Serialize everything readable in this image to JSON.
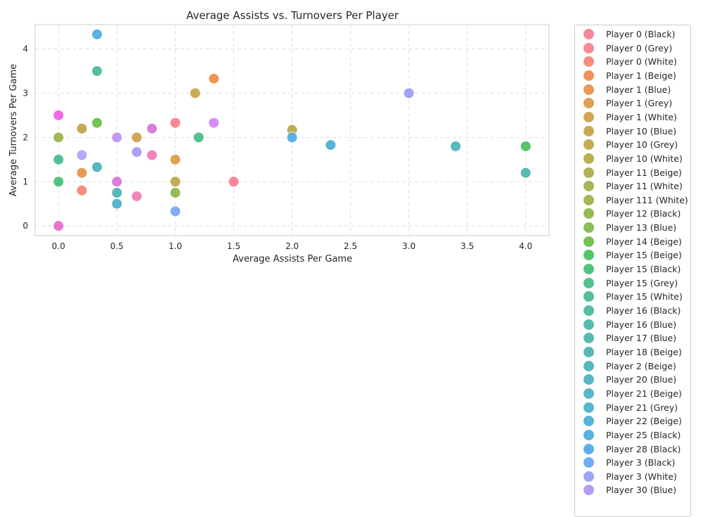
{
  "chart_data": {
    "type": "scatter",
    "title": "Average Assists vs. Turnovers Per Player",
    "xlabel": "Average Assists Per Game",
    "ylabel": "Average Turnovers Per Game",
    "xlim": [
      -0.2,
      4.2
    ],
    "ylim": [
      -0.22,
      4.55
    ],
    "xticks": [
      "0.0",
      "0.5",
      "1.0",
      "1.5",
      "2.0",
      "2.5",
      "3.0",
      "3.5",
      "4.0"
    ],
    "yticks": [
      "0",
      "1",
      "2",
      "3",
      "4"
    ],
    "grid": true,
    "grid_style": "dashed",
    "legend_position": "outside-right",
    "legend": [
      {
        "label": "Player 0 (Black)",
        "color": "#f77189"
      },
      {
        "label": "Player 0 (Grey)",
        "color": "#f7737f"
      },
      {
        "label": "Player 0 (White)",
        "color": "#f67a66"
      },
      {
        "label": "Player 1 (Beige)",
        "color": "#f07f3b"
      },
      {
        "label": "Player 1 (Blue)",
        "color": "#e48836"
      },
      {
        "label": "Player 1 (Grey)",
        "color": "#d99036"
      },
      {
        "label": "Player 1 (White)",
        "color": "#cd9636"
      },
      {
        "label": "Player 10 (Blue)",
        "color": "#c29a36"
      },
      {
        "label": "Player 10 (Grey)",
        "color": "#b89d36"
      },
      {
        "label": "Player 10 (White)",
        "color": "#afa136"
      },
      {
        "label": "Player 11 (Beige)",
        "color": "#a5a436"
      },
      {
        "label": "Player 11 (White)",
        "color": "#9ba836"
      },
      {
        "label": "Player 111 (White)",
        "color": "#90ab36"
      },
      {
        "label": "Player 12 (Black)",
        "color": "#84af37"
      },
      {
        "label": "Player 13 (Blue)",
        "color": "#73b337"
      },
      {
        "label": "Player 14 (Beige)",
        "color": "#5cb837"
      },
      {
        "label": "Player 15 (Beige)",
        "color": "#36bb4e"
      },
      {
        "label": "Player 15 (Black)",
        "color": "#36b86a"
      },
      {
        "label": "Player 15 (Grey)",
        "color": "#37b57b"
      },
      {
        "label": "Player 15 (White)",
        "color": "#37b388"
      },
      {
        "label": "Player 16 (Black)",
        "color": "#37b193"
      },
      {
        "label": "Player 16 (Blue)",
        "color": "#38af9c"
      },
      {
        "label": "Player 17 (Blue)",
        "color": "#38aea4"
      },
      {
        "label": "Player 18 (Beige)",
        "color": "#39adab"
      },
      {
        "label": "Player 2 (Beige)",
        "color": "#39acb2"
      },
      {
        "label": "Player 20 (Blue)",
        "color": "#39abb8"
      },
      {
        "label": "Player 21 (Beige)",
        "color": "#3aaabf"
      },
      {
        "label": "Player 21 (Grey)",
        "color": "#3aa9c6"
      },
      {
        "label": "Player 22 (Beige)",
        "color": "#3ba7ce"
      },
      {
        "label": "Player 25 (Black)",
        "color": "#3da5d8"
      },
      {
        "label": "Player 28 (Black)",
        "color": "#40a2e5"
      },
      {
        "label": "Player 3 (Black)",
        "color": "#5b9cf3"
      },
      {
        "label": "Player 3 (White)",
        "color": "#8b95f4"
      },
      {
        "label": "Player 30 (Blue)",
        "color": "#a48df4"
      }
    ],
    "points": [
      {
        "x": 0.33,
        "y": 4.33,
        "color": "#3da5d8"
      },
      {
        "x": 0.33,
        "y": 3.5,
        "color": "#37b193"
      },
      {
        "x": 1.33,
        "y": 3.33,
        "color": "#f07f3b"
      },
      {
        "x": 1.17,
        "y": 3.0,
        "color": "#c29a36"
      },
      {
        "x": 3.0,
        "y": 3.0,
        "color": "#8b95f4"
      },
      {
        "x": 0.0,
        "y": 2.5,
        "color": "#f04ee8"
      },
      {
        "x": 1.0,
        "y": 2.33,
        "color": "#f7737f"
      },
      {
        "x": 1.33,
        "y": 2.33,
        "color": "#d178f4"
      },
      {
        "x": 0.33,
        "y": 2.33,
        "color": "#5cb837"
      },
      {
        "x": 0.2,
        "y": 2.2,
        "color": "#b89d36"
      },
      {
        "x": 0.8,
        "y": 2.2,
        "color": "#d467d6"
      },
      {
        "x": 2.0,
        "y": 2.17,
        "color": "#afa136"
      },
      {
        "x": 0.0,
        "y": 2.0,
        "color": "#90ab36"
      },
      {
        "x": 0.5,
        "y": 2.0,
        "color": "#b68cf4"
      },
      {
        "x": 0.67,
        "y": 2.0,
        "color": "#cd9636"
      },
      {
        "x": 1.2,
        "y": 2.0,
        "color": "#37b57b"
      },
      {
        "x": 2.0,
        "y": 2.0,
        "color": "#40a2e5"
      },
      {
        "x": 2.33,
        "y": 1.83,
        "color": "#3ba7ce"
      },
      {
        "x": 3.4,
        "y": 1.8,
        "color": "#39acb2"
      },
      {
        "x": 4.0,
        "y": 1.8,
        "color": "#36bb4e"
      },
      {
        "x": 0.67,
        "y": 1.67,
        "color": "#a48df4"
      },
      {
        "x": 0.2,
        "y": 1.6,
        "color": "#a49df4"
      },
      {
        "x": 0.8,
        "y": 1.6,
        "color": "#f06fb0"
      },
      {
        "x": 0.0,
        "y": 1.5,
        "color": "#37b388"
      },
      {
        "x": 1.0,
        "y": 1.5,
        "color": "#d99036"
      },
      {
        "x": 0.33,
        "y": 1.33,
        "color": "#39abb8"
      },
      {
        "x": 0.2,
        "y": 1.2,
        "color": "#e48836"
      },
      {
        "x": 4.0,
        "y": 1.2,
        "color": "#38aea4"
      },
      {
        "x": 0.0,
        "y": 1.0,
        "color": "#36b86a"
      },
      {
        "x": 0.5,
        "y": 1.0,
        "color": "#d467d6"
      },
      {
        "x": 1.0,
        "y": 1.0,
        "color": "#b89d36"
      },
      {
        "x": 1.5,
        "y": 1.0,
        "color": "#f77189"
      },
      {
        "x": 0.2,
        "y": 0.8,
        "color": "#f67a66"
      },
      {
        "x": 0.5,
        "y": 0.75,
        "color": "#39adab"
      },
      {
        "x": 1.0,
        "y": 0.75,
        "color": "#84af37"
      },
      {
        "x": 0.67,
        "y": 0.67,
        "color": "#f06fb0"
      },
      {
        "x": 0.5,
        "y": 0.5,
        "color": "#3aa9c6"
      },
      {
        "x": 1.0,
        "y": 0.33,
        "color": "#6c9ef3"
      },
      {
        "x": 0.0,
        "y": 0.0,
        "color": "#e25fc8"
      }
    ]
  }
}
